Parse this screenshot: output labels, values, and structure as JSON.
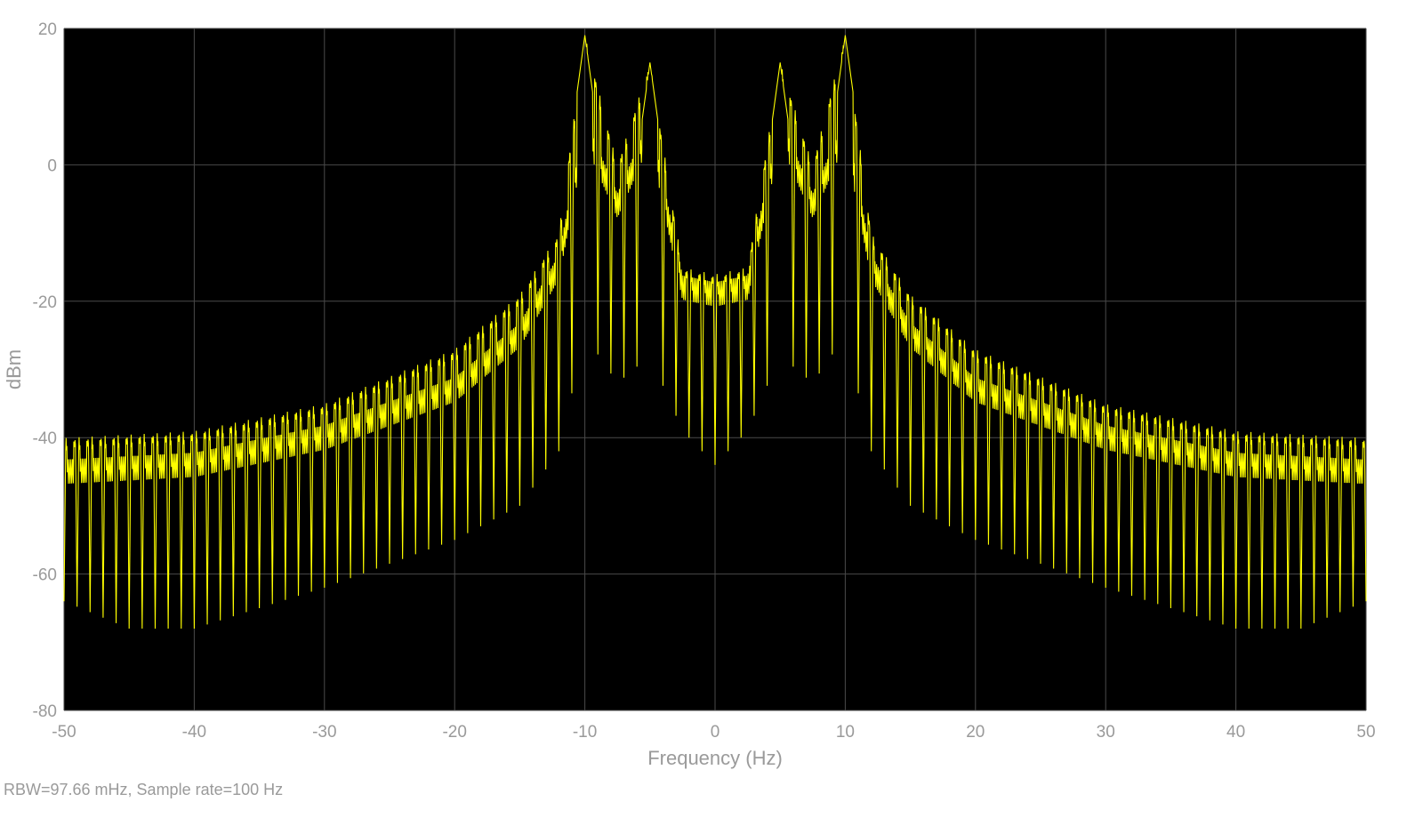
{
  "chart_data": {
    "type": "line",
    "title": "",
    "xlabel": "Frequency (Hz)",
    "ylabel": "dBm",
    "xlim": [
      -50,
      50
    ],
    "ylim": [
      -80,
      20
    ],
    "xticks": [
      -50,
      -40,
      -30,
      -20,
      -10,
      0,
      10,
      20,
      30,
      40,
      50
    ],
    "yticks": [
      -80,
      -60,
      -40,
      -20,
      0,
      20
    ],
    "grid": true,
    "background_color": "#000000",
    "grid_color": "#4a4a4a",
    "series": [
      {
        "color": "#ffff00",
        "peaks": [
          {
            "x": -10,
            "y": 19
          },
          {
            "x": -5,
            "y": 15
          },
          {
            "x": 5,
            "y": 15
          },
          {
            "x": 10,
            "y": 19
          }
        ],
        "envelope_upper": [
          {
            "x": -50,
            "y": -40
          },
          {
            "x": -40,
            "y": -39
          },
          {
            "x": -30,
            "y": -35
          },
          {
            "x": -20,
            "y": -27
          },
          {
            "x": -15,
            "y": -19
          },
          {
            "x": -12,
            "y": -10
          },
          {
            "x": -10,
            "y": 19
          },
          {
            "x": -7.5,
            "y": 0
          },
          {
            "x": -5,
            "y": 15
          },
          {
            "x": -2.5,
            "y": -15
          },
          {
            "x": 0,
            "y": -16
          },
          {
            "x": 2.5,
            "y": -15
          },
          {
            "x": 5,
            "y": 15
          },
          {
            "x": 7.5,
            "y": 0
          },
          {
            "x": 10,
            "y": 19
          },
          {
            "x": 12,
            "y": -10
          },
          {
            "x": 15,
            "y": -19
          },
          {
            "x": 20,
            "y": -27
          },
          {
            "x": 30,
            "y": -35
          },
          {
            "x": 40,
            "y": -39
          },
          {
            "x": 50,
            "y": -40
          }
        ],
        "envelope_mid": [
          {
            "x": -50,
            "y": -45
          },
          {
            "x": -40,
            "y": -44
          },
          {
            "x": -30,
            "y": -40
          },
          {
            "x": -20,
            "y": -33
          },
          {
            "x": -15,
            "y": -25
          },
          {
            "x": -12,
            "y": -15
          },
          {
            "x": -10,
            "y": 5
          },
          {
            "x": -7.5,
            "y": -6
          },
          {
            "x": -5,
            "y": 5
          },
          {
            "x": -2.5,
            "y": -18
          },
          {
            "x": 0,
            "y": -19
          },
          {
            "x": 2.5,
            "y": -18
          },
          {
            "x": 5,
            "y": 5
          },
          {
            "x": 7.5,
            "y": -6
          },
          {
            "x": 10,
            "y": 5
          },
          {
            "x": 12,
            "y": -15
          },
          {
            "x": 15,
            "y": -25
          },
          {
            "x": 20,
            "y": -33
          },
          {
            "x": 30,
            "y": -40
          },
          {
            "x": 40,
            "y": -44
          },
          {
            "x": 50,
            "y": -45
          }
        ],
        "envelope_lower": [
          {
            "x": -50,
            "y": -64
          },
          {
            "x": -45,
            "y": -68
          },
          {
            "x": -40,
            "y": -68
          },
          {
            "x": -30,
            "y": -62
          },
          {
            "x": -20,
            "y": -55
          },
          {
            "x": -15,
            "y": -50
          },
          {
            "x": -12,
            "y": -42
          },
          {
            "x": -10,
            "y": -25
          },
          {
            "x": -7.5,
            "y": -32
          },
          {
            "x": -5,
            "y": -28
          },
          {
            "x": -2.5,
            "y": -39
          },
          {
            "x": 0,
            "y": -44
          },
          {
            "x": 2.5,
            "y": -39
          },
          {
            "x": 5,
            "y": -28
          },
          {
            "x": 7.5,
            "y": -32
          },
          {
            "x": 10,
            "y": -25
          },
          {
            "x": 12,
            "y": -42
          },
          {
            "x": 15,
            "y": -50
          },
          {
            "x": 20,
            "y": -55
          },
          {
            "x": 30,
            "y": -62
          },
          {
            "x": 40,
            "y": -68
          },
          {
            "x": 45,
            "y": -68
          },
          {
            "x": 50,
            "y": -64
          }
        ],
        "ripple_period_hz": 1
      }
    ]
  },
  "footer": {
    "text": "RBW=97.66 mHz, Sample rate=100 Hz"
  }
}
